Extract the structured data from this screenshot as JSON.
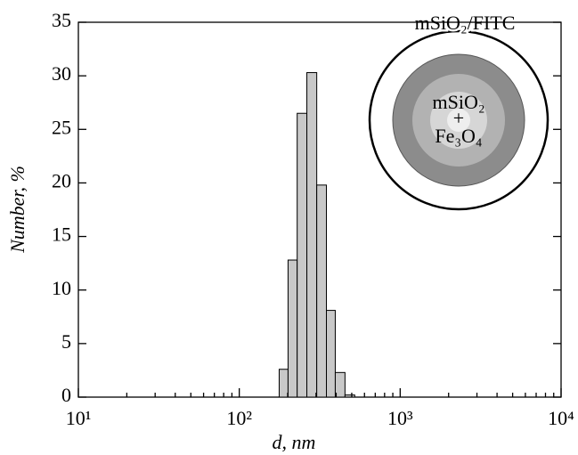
{
  "chart_data": {
    "type": "histogram",
    "x_label": "d, nm",
    "y_label": "Number, %",
    "xscale": "log",
    "bins": [
      177,
      201,
      229,
      263,
      303,
      348,
      395,
      454,
      522
    ],
    "values": [
      2.6,
      12.8,
      26.5,
      30.3,
      19.8,
      8.1,
      2.3,
      0.2
    ],
    "color": "#c8c8c8",
    "xlim": [
      10,
      10000
    ],
    "xticks": [
      {
        "value": 10,
        "label": "10¹"
      },
      {
        "value": 100,
        "label": "10²"
      },
      {
        "value": 1000,
        "label": "10³"
      },
      {
        "value": 10000,
        "label": "10⁴"
      }
    ],
    "ylim": [
      0,
      35
    ],
    "yticks": [
      0,
      5,
      10,
      15,
      20,
      25,
      30,
      35
    ],
    "annotations": [
      "mSiO₂/FITC",
      "mSiO₂",
      "+",
      "Fe₃O₄"
    ]
  }
}
